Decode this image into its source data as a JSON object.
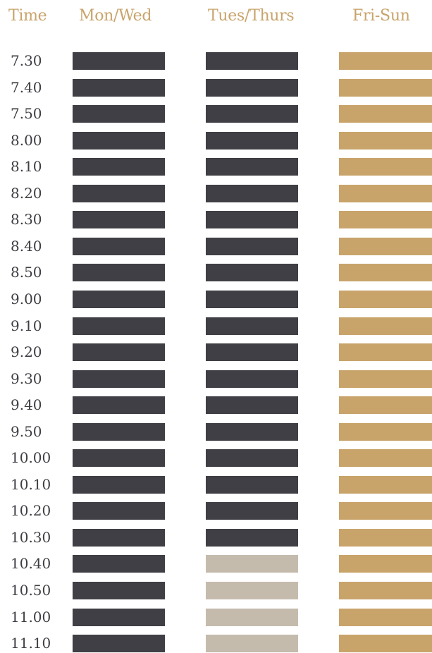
{
  "colors": {
    "accent": "#c8a46b",
    "dark": "#3f3f45",
    "unavailable": "#c5bbad",
    "time_text": "#3e3d43"
  },
  "header": {
    "time_label": "Time",
    "columns": [
      "Mon/Wed",
      "Tues/Thurs",
      "Fri-Sun"
    ]
  },
  "rows": [
    {
      "time": "7.30",
      "slots": [
        "booked",
        "booked",
        "open"
      ]
    },
    {
      "time": "7.40",
      "slots": [
        "booked",
        "booked",
        "open"
      ]
    },
    {
      "time": "7.50",
      "slots": [
        "booked",
        "booked",
        "open"
      ]
    },
    {
      "time": "8.00",
      "slots": [
        "booked",
        "booked",
        "open"
      ]
    },
    {
      "time": "8.10",
      "slots": [
        "booked",
        "booked",
        "open"
      ]
    },
    {
      "time": "8.20",
      "slots": [
        "booked",
        "booked",
        "open"
      ]
    },
    {
      "time": "8.30",
      "slots": [
        "booked",
        "booked",
        "open"
      ]
    },
    {
      "time": "8.40",
      "slots": [
        "booked",
        "booked",
        "open"
      ]
    },
    {
      "time": "8.50",
      "slots": [
        "booked",
        "booked",
        "open"
      ]
    },
    {
      "time": "9.00",
      "slots": [
        "booked",
        "booked",
        "open"
      ]
    },
    {
      "time": "9.10",
      "slots": [
        "booked",
        "booked",
        "open"
      ]
    },
    {
      "time": "9.20",
      "slots": [
        "booked",
        "booked",
        "open"
      ]
    },
    {
      "time": "9.30",
      "slots": [
        "booked",
        "booked",
        "open"
      ]
    },
    {
      "time": "9.40",
      "slots": [
        "booked",
        "booked",
        "open"
      ]
    },
    {
      "time": "9.50",
      "slots": [
        "booked",
        "booked",
        "open"
      ]
    },
    {
      "time": "10.00",
      "slots": [
        "booked",
        "booked",
        "open"
      ]
    },
    {
      "time": "10.10",
      "slots": [
        "booked",
        "booked",
        "open"
      ]
    },
    {
      "time": "10.20",
      "slots": [
        "booked",
        "booked",
        "open"
      ]
    },
    {
      "time": "10.30",
      "slots": [
        "booked",
        "booked",
        "open"
      ]
    },
    {
      "time": "10.40",
      "slots": [
        "booked",
        "unavailable",
        "open"
      ]
    },
    {
      "time": "10.50",
      "slots": [
        "booked",
        "unavailable",
        "open"
      ]
    },
    {
      "time": "11.00",
      "slots": [
        "booked",
        "unavailable",
        "open"
      ]
    },
    {
      "time": "11.10",
      "slots": [
        "booked",
        "unavailable",
        "open"
      ]
    }
  ]
}
